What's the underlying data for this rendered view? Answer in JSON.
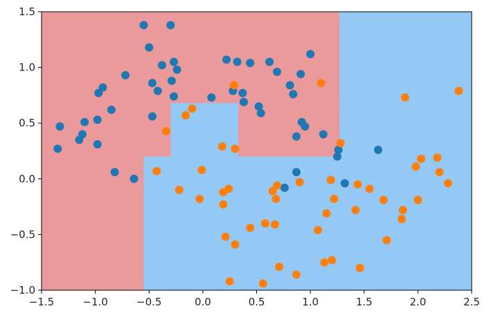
{
  "chart_data": {
    "type": "scatter",
    "title": "",
    "xlabel": "",
    "ylabel": "",
    "xlim": [
      -1.5,
      2.5
    ],
    "ylim": [
      -1.0,
      1.5
    ],
    "x_ticks": [
      -1.5,
      -1.0,
      -0.5,
      0.0,
      0.5,
      1.0,
      1.5,
      2.0,
      2.5
    ],
    "y_ticks": [
      -1.0,
      -0.5,
      0.0,
      0.5,
      1.0,
      1.5
    ],
    "x_tick_labels": [
      "−1.5",
      "−1.0",
      "−0.5",
      "0.0",
      "0.5",
      "1.0",
      "1.5",
      "2.0",
      "2.5"
    ],
    "y_tick_labels": [
      "−1.0",
      "−0.5",
      "0.0",
      "0.5",
      "1.0",
      "1.5"
    ],
    "grid": false,
    "legend": "none",
    "background_regions": {
      "class0_color": "#eb9a9b",
      "class1_color": "#94c9f5",
      "class0_boxes": [
        {
          "x0": -1.5,
          "x1": -0.55,
          "y0": -1.0,
          "y1": 1.5
        },
        {
          "x0": -0.55,
          "x1": -0.3,
          "y0": 0.2,
          "y1": 1.5
        },
        {
          "x0": -0.3,
          "x1": 1.27,
          "y0": 0.68,
          "y1": 1.5
        },
        {
          "x0": 0.33,
          "x1": 1.27,
          "y0": 0.2,
          "y1": 0.68
        }
      ]
    },
    "series": [
      {
        "color": "#1f77b4",
        "points": [
          [
            -1.35,
            0.27
          ],
          [
            -1.33,
            0.47
          ],
          [
            -1.15,
            0.35
          ],
          [
            -1.12,
            0.4
          ],
          [
            -1.1,
            0.51
          ],
          [
            -0.98,
            0.31
          ],
          [
            -0.98,
            0.53
          ],
          [
            -0.97,
            0.77
          ],
          [
            -0.93,
            0.82
          ],
          [
            -0.85,
            0.62
          ],
          [
            -0.82,
            0.06
          ],
          [
            -0.72,
            0.93
          ],
          [
            -0.64,
            0.0
          ],
          [
            -0.55,
            1.38
          ],
          [
            -0.5,
            1.18
          ],
          [
            -0.47,
            0.86
          ],
          [
            -0.47,
            0.56
          ],
          [
            -0.42,
            0.79
          ],
          [
            -0.38,
            1.02
          ],
          [
            -0.3,
            1.38
          ],
          [
            -0.29,
            0.88
          ],
          [
            -0.27,
            0.74
          ],
          [
            -0.27,
            1.05
          ],
          [
            -0.24,
            0.98
          ],
          [
            0.08,
            0.73
          ],
          [
            0.22,
            1.07
          ],
          [
            0.28,
            0.79
          ],
          [
            0.32,
            1.05
          ],
          [
            0.37,
            0.77
          ],
          [
            0.38,
            0.69
          ],
          [
            0.44,
            1.04
          ],
          [
            0.52,
            0.65
          ],
          [
            0.54,
            0.59
          ],
          [
            0.62,
            1.05
          ],
          [
            0.69,
            0.96
          ],
          [
            0.76,
            -0.08
          ],
          [
            0.81,
            0.84
          ],
          [
            0.84,
            0.76
          ],
          [
            0.87,
            0.38
          ],
          [
            0.87,
            0.06
          ],
          [
            0.91,
            0.94
          ],
          [
            0.92,
            0.51
          ],
          [
            0.95,
            0.47
          ],
          [
            1.0,
            1.12
          ],
          [
            1.12,
            0.4
          ],
          [
            1.25,
            0.2
          ],
          [
            1.26,
            0.26
          ],
          [
            1.32,
            -0.04
          ],
          [
            1.63,
            0.26
          ]
        ]
      },
      {
        "color": "#ff7f0e",
        "points": [
          [
            -0.43,
            0.07
          ],
          [
            -0.34,
            0.43
          ],
          [
            -0.22,
            -0.1
          ],
          [
            -0.16,
            0.57
          ],
          [
            -0.1,
            0.63
          ],
          [
            -0.03,
            -0.18
          ],
          [
            -0.01,
            0.08
          ],
          [
            0.18,
            0.29
          ],
          [
            0.19,
            -0.23
          ],
          [
            0.19,
            -0.12
          ],
          [
            0.21,
            -0.52
          ],
          [
            0.24,
            -0.09
          ],
          [
            0.25,
            -0.92
          ],
          [
            0.29,
            0.84
          ],
          [
            0.3,
            0.27
          ],
          [
            0.3,
            -0.59
          ],
          [
            0.44,
            -0.44
          ],
          [
            0.56,
            -0.94
          ],
          [
            0.58,
            -0.4
          ],
          [
            0.65,
            -0.11
          ],
          [
            0.67,
            -0.41
          ],
          [
            0.68,
            -0.18
          ],
          [
            0.69,
            -0.06
          ],
          [
            0.71,
            -0.79
          ],
          [
            0.87,
            -0.86
          ],
          [
            0.9,
            -0.03
          ],
          [
            1.07,
            -0.46
          ],
          [
            1.1,
            0.86
          ],
          [
            1.13,
            -0.75
          ],
          [
            1.15,
            -0.31
          ],
          [
            1.19,
            -0.01
          ],
          [
            1.2,
            -0.73
          ],
          [
            1.22,
            -0.18
          ],
          [
            1.28,
            0.32
          ],
          [
            1.42,
            -0.28
          ],
          [
            1.44,
            -0.05
          ],
          [
            1.46,
            -0.8
          ],
          [
            1.55,
            -0.09
          ],
          [
            1.68,
            -0.19
          ],
          [
            1.71,
            -0.55
          ],
          [
            1.85,
            -0.36
          ],
          [
            1.86,
            -0.28
          ],
          [
            1.88,
            0.73
          ],
          [
            1.98,
            0.11
          ],
          [
            2.0,
            -0.19
          ],
          [
            2.03,
            0.18
          ],
          [
            2.18,
            0.19
          ],
          [
            2.2,
            0.06
          ],
          [
            2.28,
            -0.04
          ],
          [
            2.38,
            0.79
          ]
        ]
      }
    ]
  }
}
